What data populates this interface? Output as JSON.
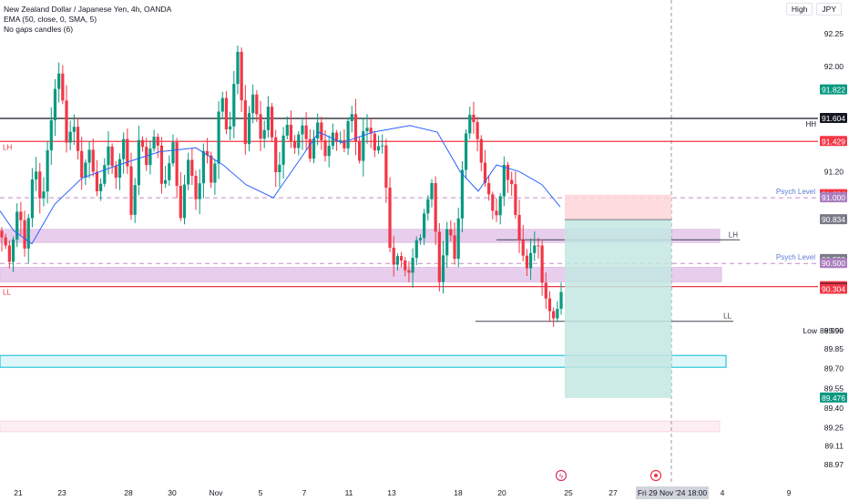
{
  "legend": {
    "symbol": "New Zealand Dollar / Japanese Yen, 4h, OANDA",
    "ema": "EMA (50, close, 0, SMA, 5)",
    "nogaps": "No gaps candles (6)"
  },
  "top_right": {
    "high_label": "High",
    "currency": "JPY"
  },
  "colors": {
    "up": "#089981",
    "down": "#f23645",
    "ema": "#2962ff",
    "hline_black": "#131722",
    "hline_red": "#f23645",
    "psych": "#c58ac5",
    "zone_purple": "#e1bee7",
    "zone_cyan": "#00bcd4",
    "zone_pink": "#fce4ec",
    "sl_fill": "#fdd5d8",
    "tp_fill": "#c3e6e2"
  },
  "chart_data": {
    "type": "candlestick",
    "title": "New Zealand Dollar / Japanese Yen, 4h, OANDA",
    "ylim": [
      88.9,
      92.45
    ],
    "y_ticks": [
      92.25,
      92.0,
      91.2,
      91.0,
      90.5,
      89.99,
      89.85,
      89.7,
      89.55,
      89.4,
      89.25,
      89.11,
      88.97
    ],
    "x_ticks": [
      "21",
      "23",
      "28",
      "30",
      "Nov",
      "5",
      "7",
      "11",
      "13",
      "18",
      "20",
      "25",
      "27",
      "4",
      "9"
    ],
    "crosshair_date": "Fri 29 Nov '24",
    "crosshair_time": "18:00",
    "path": [
      90.7,
      90.55,
      90.95,
      90.6,
      91.3,
      90.9,
      91.6,
      92.0,
      91.45,
      91.55,
      91.15,
      91.35,
      90.95,
      91.45,
      91.1,
      91.5,
      90.85,
      91.5,
      91.25,
      91.55,
      91.0,
      91.45,
      90.85,
      91.3,
      90.95,
      91.45,
      91.1,
      91.85,
      91.35,
      92.2,
      91.4,
      91.8,
      91.45,
      91.7,
      91.1,
      91.55,
      91.3,
      91.55,
      91.35,
      91.6,
      91.3,
      91.5,
      91.35,
      91.7,
      91.3,
      91.55,
      91.35,
      91.45,
      90.45,
      90.65,
      90.35,
      90.6,
      90.8,
      91.2,
      90.4,
      90.75,
      90.55,
      91.45,
      91.7,
      91.35,
      91.0,
      90.9,
      91.25,
      91.1,
      90.6,
      90.5,
      90.7,
      90.2,
      90.05,
      90.3
    ],
    "ema_points": [
      [
        0,
        90.9
      ],
      [
        15,
        90.75
      ],
      [
        35,
        90.65
      ],
      [
        60,
        90.95
      ],
      [
        90,
        91.15
      ],
      [
        130,
        91.25
      ],
      [
        175,
        91.35
      ],
      [
        215,
        91.38
      ],
      [
        245,
        91.25
      ],
      [
        270,
        91.1
      ],
      [
        300,
        91.0
      ],
      [
        325,
        91.25
      ],
      [
        350,
        91.5
      ],
      [
        375,
        91.42
      ],
      [
        410,
        91.5
      ],
      [
        450,
        91.55
      ],
      [
        480,
        91.5
      ],
      [
        505,
        91.2
      ],
      [
        525,
        91.05
      ],
      [
        545,
        91.25
      ],
      [
        570,
        91.2
      ],
      [
        595,
        91.1
      ],
      [
        615,
        90.93
      ]
    ],
    "price_labels": [
      {
        "value": 91.822,
        "text": "91.822",
        "color": "#089981"
      },
      {
        "value": 91.604,
        "text": "91.604",
        "color": "#131722"
      },
      {
        "value": 91.429,
        "text": "91.429",
        "color": "#f23645"
      },
      {
        "value": 91.024,
        "text": "91.024",
        "color": "#f23645"
      },
      {
        "value": 91.0,
        "text": "91.000",
        "color": "#ab7fbf"
      },
      {
        "value": 90.834,
        "text": "90.834",
        "color": "#787b86"
      },
      {
        "value": 90.53,
        "text": "90.530",
        "color": "#787b86"
      },
      {
        "value": 90.5,
        "text": "90.500",
        "color": "#ab7fbf"
      },
      {
        "value": 90.324,
        "text": "90.324",
        "color": "#f23645"
      },
      {
        "value": 90.31,
        "text": "90.310",
        "color": "#131722"
      },
      {
        "value": 90.304,
        "text": "90.304",
        "color": "#f23645"
      },
      {
        "value": 89.476,
        "text": "89.476",
        "color": "#089981"
      }
    ],
    "hlines": [
      {
        "value": 91.604,
        "style": "solid",
        "color": "#131722",
        "label": "HH",
        "label_side": "right"
      },
      {
        "value": 91.429,
        "style": "solid",
        "color": "#f23645",
        "label": "LH",
        "label_side": "left"
      },
      {
        "value": 90.324,
        "style": "solid",
        "color": "#f23645",
        "label": "LL",
        "label_side": "left"
      },
      {
        "value": 91.0,
        "style": "dashed",
        "color": "#c58ac5",
        "label": "Psych Level",
        "label_side": "right"
      },
      {
        "value": 90.5,
        "style": "dashed",
        "color": "#c58ac5",
        "label": "Psych Level",
        "label_side": "right"
      }
    ],
    "segments": [
      {
        "x0": 545,
        "x1": 812,
        "value": 90.68,
        "label": "LH"
      },
      {
        "x0": 522,
        "x1": 805,
        "value": 90.06,
        "label": "LL"
      }
    ],
    "zones": [
      {
        "x0": 0,
        "x1": 790,
        "top": 90.76,
        "bottom": 90.66,
        "kind": "purple"
      },
      {
        "x0": 0,
        "x1": 792,
        "top": 90.47,
        "bottom": 90.36,
        "kind": "purple"
      },
      {
        "x0": 0,
        "x1": 797,
        "top": 89.8,
        "bottom": 89.71,
        "kind": "cyan"
      },
      {
        "x0": 0,
        "x1": 790,
        "top": 89.3,
        "bottom": 89.22,
        "kind": "pink"
      }
    ],
    "position": {
      "entry": 90.834,
      "stop": 91.024,
      "target": 89.476,
      "x0": 620,
      "x1": 737
    },
    "low_label": {
      "text": "Low",
      "value": 89.99,
      "text_value": "89.990"
    }
  }
}
